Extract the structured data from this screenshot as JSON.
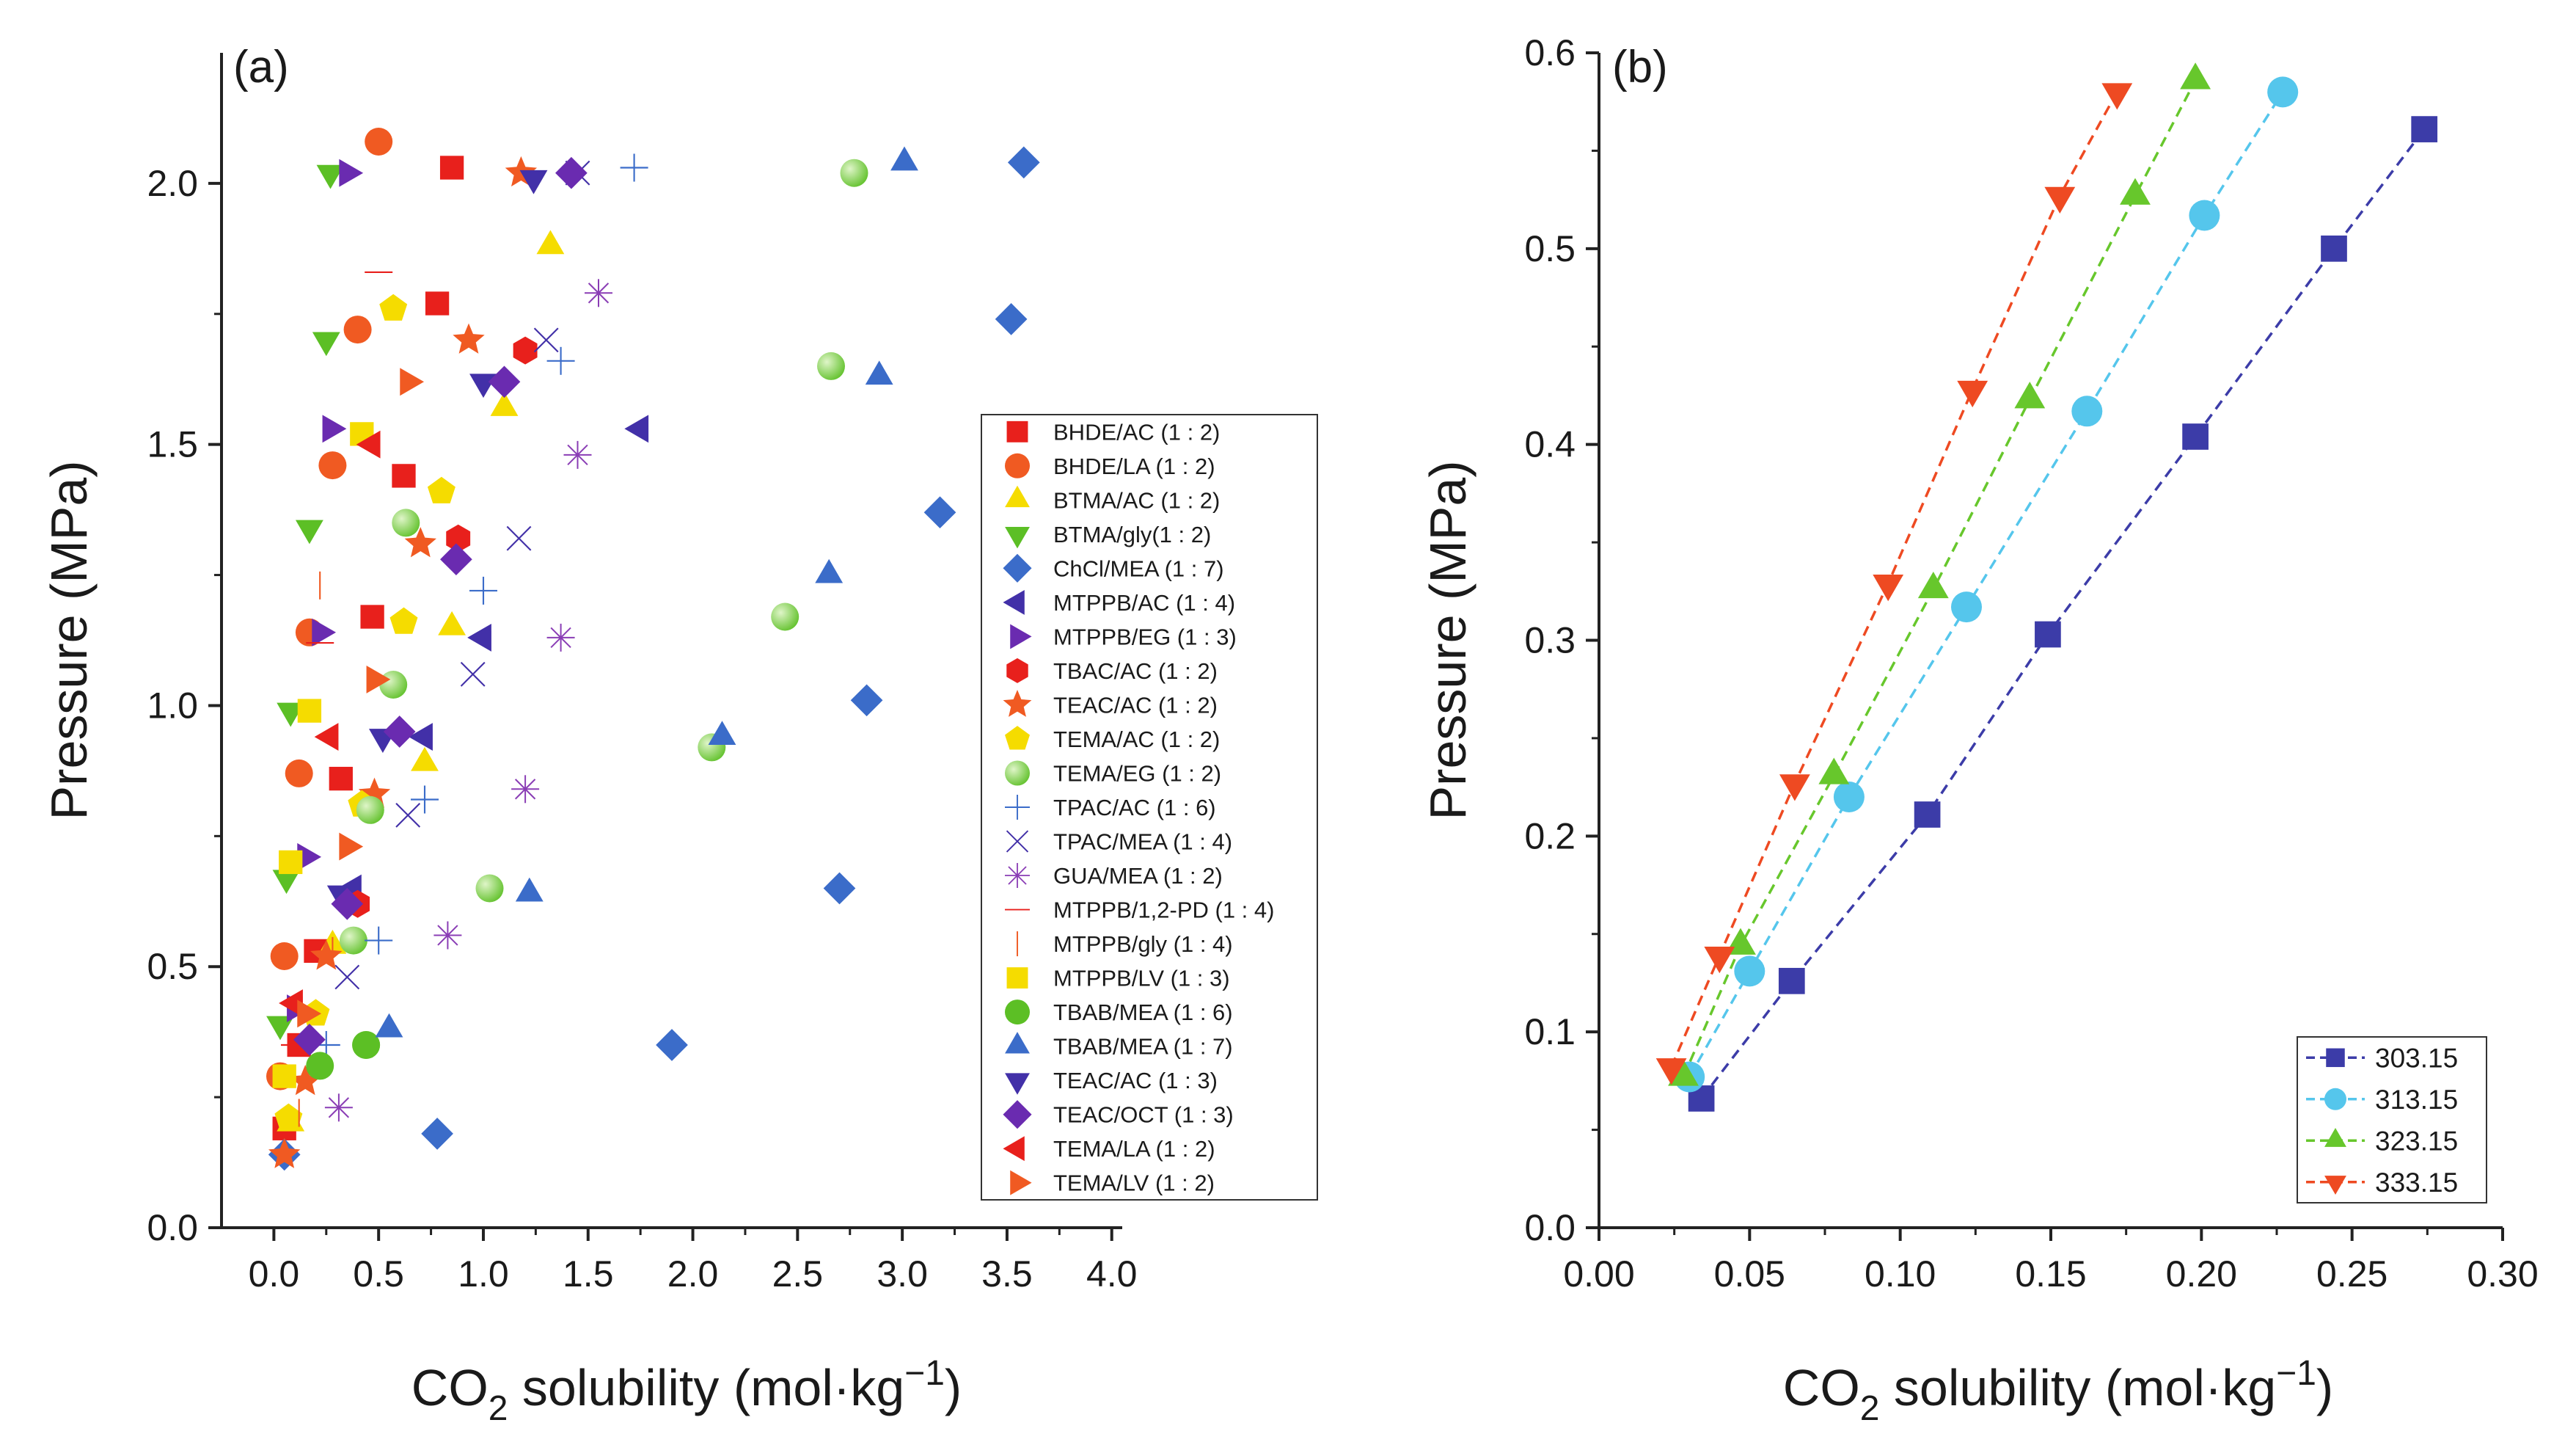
{
  "chart_data": [
    {
      "type": "scatter",
      "panel_label": "(a)",
      "xlabel_parts": [
        "CO",
        "2",
        " solubility (mol·kg",
        "−1",
        ")"
      ],
      "ylabel": "Pressure (MPa)",
      "xlim": [
        -0.25,
        4.05
      ],
      "ylim": [
        0,
        2.25
      ],
      "xticks": [
        0.0,
        0.5,
        1.0,
        1.5,
        2.0,
        2.5,
        3.0,
        3.5,
        4.0
      ],
      "xtick_labels": [
        "0.0",
        "0.5",
        "1.0",
        "1.5",
        "2.0",
        "2.5",
        "3.0",
        "3.5",
        "4.0"
      ],
      "yticks": [
        0.0,
        0.5,
        1.0,
        1.5,
        2.0
      ],
      "ytick_labels": [
        "0.0",
        "0.5",
        "1.0",
        "1.5",
        "2.0"
      ],
      "legend_position": "right",
      "series": [
        {
          "name": "BHDE/AC (1 : 2)",
          "marker": "square",
          "color": "#e8201c",
          "points": [
            [
              0.05,
              0.19
            ],
            [
              0.12,
              0.35
            ],
            [
              0.2,
              0.53
            ],
            [
              0.32,
              0.86
            ],
            [
              0.47,
              1.17
            ],
            [
              0.62,
              1.44
            ],
            [
              0.78,
              1.77
            ],
            [
              0.85,
              2.03
            ]
          ]
        },
        {
          "name": "BHDE/LA (1 : 2)",
          "marker": "circle",
          "color": "#f05a22",
          "points": [
            [
              0.03,
              0.29
            ],
            [
              0.05,
              0.52
            ],
            [
              0.12,
              0.87
            ],
            [
              0.17,
              1.14
            ],
            [
              0.28,
              1.46
            ],
            [
              0.4,
              1.72
            ],
            [
              0.5,
              2.08
            ]
          ]
        },
        {
          "name": "BTMA/AC (1 : 2)",
          "marker": "triangle-up",
          "color": "#f5dc00",
          "points": [
            [
              0.08,
              0.2
            ],
            [
              0.28,
              0.54
            ],
            [
              0.72,
              0.89
            ],
            [
              0.85,
              1.15
            ],
            [
              1.1,
              1.57
            ],
            [
              1.32,
              1.88
            ]
          ]
        },
        {
          "name": "BTMA/gly(1 : 2)",
          "marker": "triangle-down",
          "color": "#5cbf25",
          "points": [
            [
              0.03,
              0.39
            ],
            [
              0.06,
              0.67
            ],
            [
              0.08,
              0.99
            ],
            [
              0.17,
              1.34
            ],
            [
              0.25,
              1.7
            ],
            [
              0.27,
              2.02
            ]
          ]
        },
        {
          "name": "ChCl/MEA (1 : 7)",
          "marker": "diamond",
          "color": "#3b6cc9",
          "points": [
            [
              0.05,
              0.14
            ],
            [
              0.78,
              0.18
            ],
            [
              1.9,
              0.35
            ],
            [
              2.7,
              0.65
            ],
            [
              2.83,
              1.01
            ],
            [
              3.18,
              1.37
            ],
            [
              3.52,
              1.74
            ],
            [
              3.58,
              2.04
            ]
          ]
        },
        {
          "name": "MTPPB/AC (1 : 4)",
          "marker": "triangle-left",
          "color": "#4230a8",
          "points": [
            [
              0.38,
              0.65
            ],
            [
              0.72,
              0.94
            ],
            [
              1.0,
              1.13
            ],
            [
              1.75,
              1.53
            ]
          ]
        },
        {
          "name": "MTPPB/EG (1 : 3)",
          "marker": "triangle-right",
          "color": "#6a2bb0",
          "points": [
            [
              0.1,
              0.42
            ],
            [
              0.15,
              0.71
            ],
            [
              0.22,
              1.14
            ],
            [
              0.27,
              1.53
            ],
            [
              0.35,
              2.02
            ]
          ]
        },
        {
          "name": "TBAC/AC (1 : 2)",
          "marker": "hexagon",
          "color": "#e8201c",
          "points": [
            [
              0.4,
              0.62
            ],
            [
              0.88,
              1.32
            ],
            [
              1.2,
              1.68
            ]
          ]
        },
        {
          "name": "TEAC/AC (1 : 2)",
          "marker": "star",
          "color": "#f05a22",
          "points": [
            [
              0.05,
              0.14
            ],
            [
              0.15,
              0.28
            ],
            [
              0.25,
              0.52
            ],
            [
              0.48,
              0.83
            ],
            [
              0.7,
              1.31
            ],
            [
              0.93,
              1.7
            ],
            [
              1.18,
              2.02
            ]
          ]
        },
        {
          "name": "TEMA/AC (1 : 2)",
          "marker": "pentagon",
          "color": "#f5dc00",
          "points": [
            [
              0.07,
              0.21
            ],
            [
              0.2,
              0.41
            ],
            [
              0.42,
              0.81
            ],
            [
              0.62,
              1.16
            ],
            [
              0.8,
              1.41
            ],
            [
              0.57,
              1.76
            ]
          ]
        },
        {
          "name": "TEMA/EG (1 : 2)",
          "marker": "ball",
          "color": "#5cbf25",
          "points": [
            [
              0.44,
              0.35
            ],
            [
              0.38,
              0.55
            ],
            [
              1.03,
              0.65
            ],
            [
              0.46,
              0.8
            ],
            [
              0.57,
              1.04
            ],
            [
              2.09,
              0.92
            ],
            [
              2.44,
              1.17
            ],
            [
              0.63,
              1.35
            ],
            [
              2.66,
              1.65
            ],
            [
              2.77,
              2.02
            ]
          ]
        },
        {
          "name": "TPAC/AC (1 : 6)",
          "marker": "plus",
          "color": "#3b6cc9",
          "points": [
            [
              0.25,
              0.35
            ],
            [
              0.5,
              0.55
            ],
            [
              0.72,
              0.82
            ],
            [
              1.0,
              1.22
            ],
            [
              1.37,
              1.66
            ],
            [
              1.72,
              2.03
            ]
          ]
        },
        {
          "name": "TPAC/MEA (1 : 4)",
          "marker": "x",
          "color": "#4230a8",
          "points": [
            [
              0.35,
              0.48
            ],
            [
              0.64,
              0.79
            ],
            [
              0.95,
              1.06
            ],
            [
              1.17,
              1.32
            ],
            [
              1.3,
              1.7
            ],
            [
              1.45,
              2.02
            ]
          ]
        },
        {
          "name": "GUA/MEA (1 : 2)",
          "marker": "asterisk",
          "color": "#8a3db5",
          "points": [
            [
              0.31,
              0.23
            ],
            [
              0.83,
              0.56
            ],
            [
              1.2,
              0.84
            ],
            [
              1.37,
              1.13
            ],
            [
              1.45,
              1.48
            ],
            [
              1.55,
              1.79
            ]
          ]
        },
        {
          "name": "MTPPB/1,2-PD (1 : 4)",
          "marker": "hline",
          "color": "#e8201c",
          "points": [
            [
              0.5,
              1.83
            ],
            [
              0.22,
              1.12
            ],
            [
              0.1,
              0.35
            ]
          ]
        },
        {
          "name": "MTPPB/gly (1 : 4)",
          "marker": "vline",
          "color": "#f05a22",
          "points": [
            [
              0.22,
              1.23
            ],
            [
              0.28,
              0.53
            ],
            [
              0.12,
              0.22
            ]
          ]
        },
        {
          "name": "MTPPB/LV (1 : 3)",
          "marker": "square",
          "color": "#f5dc00",
          "points": [
            [
              0.05,
              0.29
            ],
            [
              0.08,
              0.7
            ],
            [
              0.17,
              0.99
            ],
            [
              0.42,
              1.52
            ]
          ]
        },
        {
          "name": "TBAB/MEA (1 : 6)",
          "marker": "circle",
          "color": "#5cbf25",
          "points": [
            [
              0.22,
              0.31
            ],
            [
              0.44,
              0.35
            ]
          ]
        },
        {
          "name": "TBAB/MEA (1 : 7)",
          "marker": "triangle-up",
          "color": "#3b6cc9",
          "points": [
            [
              0.55,
              0.38
            ],
            [
              1.22,
              0.64
            ],
            [
              2.14,
              0.94
            ],
            [
              2.65,
              1.25
            ],
            [
              2.89,
              1.63
            ],
            [
              3.01,
              2.04
            ]
          ]
        },
        {
          "name": "TEAC/AC (1 : 3)",
          "marker": "triangle-down",
          "color": "#4230a8",
          "points": [
            [
              0.32,
              0.64
            ],
            [
              0.52,
              0.94
            ],
            [
              1.0,
              1.62
            ],
            [
              1.24,
              2.01
            ]
          ]
        },
        {
          "name": "TEAC/OCT (1 : 3)",
          "marker": "diamond",
          "color": "#6a2bb0",
          "points": [
            [
              0.17,
              0.36
            ],
            [
              0.35,
              0.62
            ],
            [
              0.6,
              0.95
            ],
            [
              0.87,
              1.28
            ],
            [
              1.1,
              1.62
            ],
            [
              1.42,
              2.02
            ]
          ]
        },
        {
          "name": "TEMA/LA (1 : 2)",
          "marker": "triangle-left",
          "color": "#e8201c",
          "points": [
            [
              0.1,
              0.43
            ],
            [
              0.27,
              0.94
            ],
            [
              0.47,
              1.5
            ]
          ]
        },
        {
          "name": "TEMA/LV (1 : 2)",
          "marker": "triangle-right",
          "color": "#f05a22",
          "points": [
            [
              0.15,
              0.41
            ],
            [
              0.35,
              0.73
            ],
            [
              0.48,
              1.05
            ],
            [
              0.64,
              1.62
            ]
          ]
        }
      ]
    },
    {
      "type": "line",
      "panel_label": "(b)",
      "xlabel_parts": [
        "CO",
        "2",
        " solubility (mol·kg",
        "−1",
        ")"
      ],
      "ylabel": "Pressure (MPa)",
      "xlim": [
        0.0,
        0.3
      ],
      "ylim": [
        0.0,
        0.6
      ],
      "xticks": [
        0.0,
        0.05,
        0.1,
        0.15,
        0.2,
        0.25,
        0.3
      ],
      "xtick_labels": [
        "0.00",
        "0.05",
        "0.10",
        "0.15",
        "0.20",
        "0.25",
        "0.30"
      ],
      "yticks": [
        0.0,
        0.1,
        0.2,
        0.3,
        0.4,
        0.5,
        0.6
      ],
      "ytick_labels": [
        "0.0",
        "0.1",
        "0.2",
        "0.3",
        "0.4",
        "0.5",
        "0.6"
      ],
      "legend_position": "bottom-right",
      "line_style": "dashed",
      "series": [
        {
          "name": "303.15",
          "marker": "square",
          "color": "#3c3ca8",
          "x": [
            0.034,
            0.064,
            0.109,
            0.149,
            0.198,
            0.244,
            0.274
          ],
          "y": [
            0.066,
            0.126,
            0.211,
            0.303,
            0.404,
            0.5,
            0.561
          ]
        },
        {
          "name": "313.15",
          "marker": "circle",
          "color": "#55c6ec",
          "x": [
            0.03,
            0.05,
            0.083,
            0.122,
            0.162,
            0.201,
            0.227
          ],
          "y": [
            0.077,
            0.131,
            0.22,
            0.317,
            0.417,
            0.517,
            0.58
          ]
        },
        {
          "name": "323.15",
          "marker": "triangle-up",
          "color": "#67c72c",
          "x": [
            0.028,
            0.047,
            0.078,
            0.111,
            0.143,
            0.178,
            0.198
          ],
          "y": [
            0.077,
            0.144,
            0.231,
            0.326,
            0.423,
            0.527,
            0.586
          ]
        },
        {
          "name": "333.15",
          "marker": "triangle-down",
          "color": "#ee4a22",
          "x": [
            0.024,
            0.04,
            0.065,
            0.096,
            0.124,
            0.153,
            0.172
          ],
          "y": [
            0.082,
            0.139,
            0.227,
            0.329,
            0.428,
            0.527,
            0.58
          ]
        }
      ]
    }
  ]
}
